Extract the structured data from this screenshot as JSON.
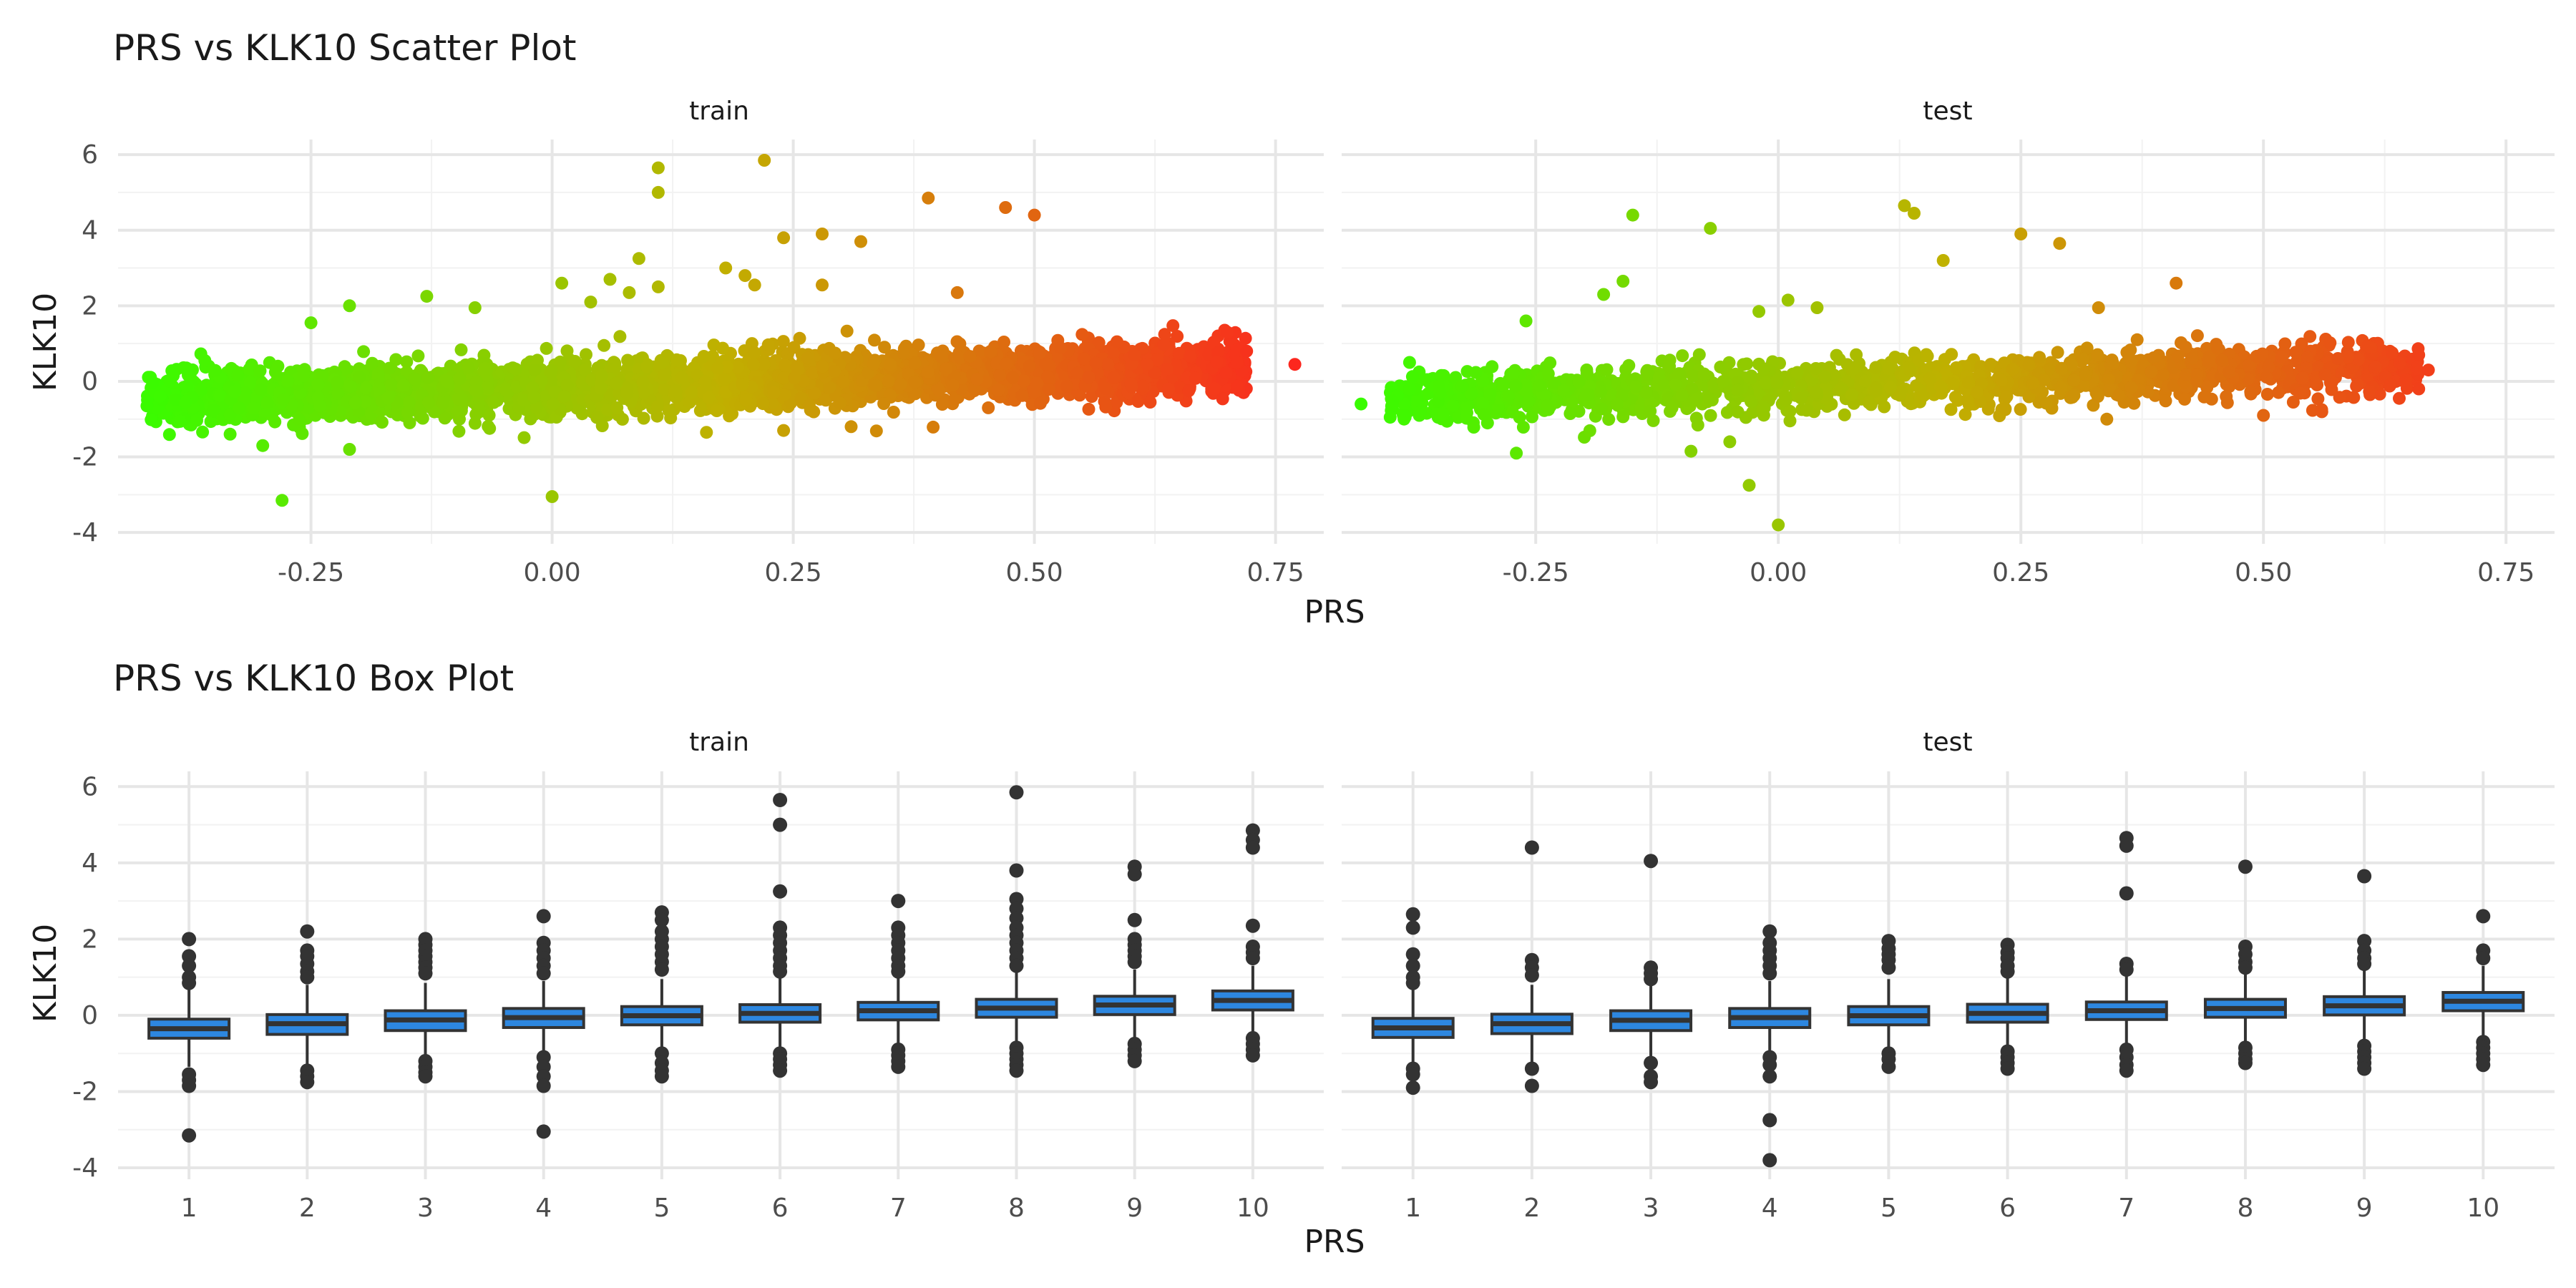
{
  "chart_data": [
    {
      "type": "scatter",
      "title": "PRS vs KLK10 Scatter Plot",
      "xlabel": "PRS",
      "ylabel": "KLK10",
      "color_gradient": {
        "low": "#33ff00",
        "mid": "#c0b000",
        "high": "#ff2020"
      },
      "xlim": [
        -0.45,
        0.8
      ],
      "ylim": [
        -4.3,
        6.4
      ],
      "x_ticks": [
        -0.25,
        0,
        0.25,
        0.5,
        0.75
      ],
      "x_tick_labels": [
        "-0.25",
        "0.00",
        "0.25",
        "0.50",
        "0.75"
      ],
      "y_ticks": [
        -4,
        -2,
        0,
        2,
        4,
        6
      ],
      "y_tick_labels": [
        "-4",
        "-2",
        "0",
        "2",
        "4",
        "6"
      ],
      "grid": true,
      "panels": [
        {
          "name": "train",
          "cloud": {
            "x_min": -0.42,
            "x_max": 0.72,
            "y_slope": 0.8,
            "y_intercept": -0.15,
            "y_spread": 0.55,
            "n_points": 3500
          },
          "points": [
            {
              "x": -0.42,
              "y": -0.65
            },
            {
              "x": -0.38,
              "y": -0.55
            },
            {
              "x": -0.36,
              "y": 0.55
            },
            {
              "x": -0.3,
              "y": -1.7
            },
            {
              "x": -0.28,
              "y": -3.15
            },
            {
              "x": -0.25,
              "y": 1.55
            },
            {
              "x": -0.21,
              "y": -1.8
            },
            {
              "x": -0.21,
              "y": 2.0
            },
            {
              "x": -0.13,
              "y": 2.25
            },
            {
              "x": -0.08,
              "y": 1.95
            },
            {
              "x": 0.0,
              "y": -3.05
            },
            {
              "x": 0.01,
              "y": 2.6
            },
            {
              "x": 0.04,
              "y": 2.1
            },
            {
              "x": 0.06,
              "y": 2.7
            },
            {
              "x": 0.08,
              "y": 2.35
            },
            {
              "x": 0.09,
              "y": 3.25
            },
            {
              "x": 0.11,
              "y": 5.65
            },
            {
              "x": 0.11,
              "y": 5.0
            },
            {
              "x": 0.11,
              "y": 2.5
            },
            {
              "x": 0.18,
              "y": 3.0
            },
            {
              "x": 0.2,
              "y": 2.8
            },
            {
              "x": 0.21,
              "y": 2.55
            },
            {
              "x": 0.22,
              "y": 5.85
            },
            {
              "x": 0.24,
              "y": 3.8
            },
            {
              "x": 0.28,
              "y": 3.9
            },
            {
              "x": 0.32,
              "y": 3.7
            },
            {
              "x": 0.28,
              "y": 2.55
            },
            {
              "x": 0.39,
              "y": 4.85
            },
            {
              "x": 0.42,
              "y": 2.35
            },
            {
              "x": 0.47,
              "y": 4.6
            },
            {
              "x": 0.5,
              "y": 4.4
            },
            {
              "x": 0.62,
              "y": -0.55
            },
            {
              "x": 0.66,
              "y": -0.25
            },
            {
              "x": 0.7,
              "y": 1.3
            },
            {
              "x": 0.71,
              "y": 0.5
            },
            {
              "x": 0.72,
              "y": 0.8
            },
            {
              "x": 0.77,
              "y": 0.45
            },
            {
              "x": 0.16,
              "y": -1.35
            },
            {
              "x": 0.24,
              "y": -1.3
            },
            {
              "x": 0.31,
              "y": -1.2
            }
          ]
        },
        {
          "name": "test",
          "cloud": {
            "x_min": -0.4,
            "x_max": 0.66,
            "y_slope": 0.8,
            "y_intercept": -0.15,
            "y_spread": 0.55,
            "n_points": 1500
          },
          "points": [
            {
              "x": -0.43,
              "y": -0.6
            },
            {
              "x": -0.4,
              "y": -0.95
            },
            {
              "x": -0.37,
              "y": -0.9
            },
            {
              "x": -0.38,
              "y": 0.5
            },
            {
              "x": -0.26,
              "y": 1.6
            },
            {
              "x": -0.27,
              "y": -1.9
            },
            {
              "x": -0.18,
              "y": 2.3
            },
            {
              "x": -0.16,
              "y": 2.65
            },
            {
              "x": -0.15,
              "y": 4.4
            },
            {
              "x": -0.07,
              "y": 4.05
            },
            {
              "x": -0.09,
              "y": -1.85
            },
            {
              "x": -0.05,
              "y": -1.6
            },
            {
              "x": -0.03,
              "y": -2.75
            },
            {
              "x": 0.0,
              "y": -3.8
            },
            {
              "x": -0.02,
              "y": 1.85
            },
            {
              "x": 0.01,
              "y": 2.15
            },
            {
              "x": 0.04,
              "y": 1.95
            },
            {
              "x": 0.13,
              "y": 4.65
            },
            {
              "x": 0.14,
              "y": 4.45
            },
            {
              "x": 0.17,
              "y": 3.2
            },
            {
              "x": 0.25,
              "y": 3.9
            },
            {
              "x": 0.29,
              "y": 3.65
            },
            {
              "x": 0.33,
              "y": 1.95
            },
            {
              "x": 0.41,
              "y": 2.6
            },
            {
              "x": 0.64,
              "y": -0.45
            },
            {
              "x": 0.66,
              "y": -0.2
            },
            {
              "x": 0.67,
              "y": 0.3
            },
            {
              "x": 0.66,
              "y": 0.7
            },
            {
              "x": 0.56,
              "y": -0.75
            },
            {
              "x": 0.5,
              "y": -0.9
            }
          ]
        }
      ]
    },
    {
      "type": "box",
      "title": "PRS vs KLK10 Box Plot",
      "xlabel": "PRS",
      "ylabel": "KLK10",
      "box_color": "#2d87e0",
      "categories": [
        "1",
        "2",
        "3",
        "4",
        "5",
        "6",
        "7",
        "8",
        "9",
        "10"
      ],
      "ylim": [
        -4.3,
        6.4
      ],
      "y_ticks": [
        -4,
        -2,
        0,
        2,
        4,
        6
      ],
      "y_tick_labels": [
        "-4",
        "-2",
        "0",
        "2",
        "4",
        "6"
      ],
      "grid": true,
      "panels": [
        {
          "name": "train",
          "boxes": [
            {
              "q1": -0.6,
              "median": -0.35,
              "q3": -0.1,
              "whisker_low": -1.35,
              "whisker_high": 0.7,
              "outliers": [
                2.0,
                1.55,
                1.3,
                1.0,
                0.85,
                -1.55,
                -1.7,
                -1.85,
                -3.15
              ]
            },
            {
              "q1": -0.5,
              "median": -0.22,
              "q3": 0.02,
              "whisker_low": -1.3,
              "whisker_high": 0.8,
              "outliers": [
                2.2,
                1.7,
                1.55,
                1.35,
                1.15,
                1.0,
                -1.45,
                -1.6,
                -1.75
              ]
            },
            {
              "q1": -0.4,
              "median": -0.12,
              "q3": 0.12,
              "whisker_low": -1.1,
              "whisker_high": 0.85,
              "outliers": [
                2.0,
                1.85,
                1.7,
                1.55,
                1.4,
                1.25,
                1.1,
                -1.2,
                -1.35,
                -1.5,
                -1.6
              ]
            },
            {
              "q1": -0.32,
              "median": -0.06,
              "q3": 0.18,
              "whisker_low": -1.0,
              "whisker_high": 0.9,
              "outliers": [
                2.6,
                1.9,
                1.7,
                1.5,
                1.3,
                1.1,
                -1.1,
                -1.35,
                -1.6,
                -1.85,
                -3.05
              ]
            },
            {
              "q1": -0.25,
              "median": -0.01,
              "q3": 0.23,
              "whisker_low": -0.9,
              "whisker_high": 0.95,
              "outliers": [
                2.7,
                2.5,
                2.2,
                2.0,
                1.8,
                1.6,
                1.4,
                1.2,
                -1.0,
                -1.25,
                -1.45,
                -1.6
              ]
            },
            {
              "q1": -0.18,
              "median": 0.05,
              "q3": 0.28,
              "whisker_low": -0.85,
              "whisker_high": 1.0,
              "outliers": [
                5.65,
                5.0,
                3.25,
                2.3,
                2.1,
                1.9,
                1.7,
                1.5,
                1.3,
                1.15,
                -1.0,
                -1.15,
                -1.3,
                -1.45
              ]
            },
            {
              "q1": -0.12,
              "median": 0.12,
              "q3": 0.34,
              "whisker_low": -0.8,
              "whisker_high": 1.05,
              "outliers": [
                3.0,
                2.3,
                2.1,
                1.9,
                1.7,
                1.5,
                1.3,
                1.15,
                -0.9,
                -1.05,
                -1.2,
                -1.35
              ]
            },
            {
              "q1": -0.05,
              "median": 0.19,
              "q3": 0.42,
              "whisker_low": -0.75,
              "whisker_high": 1.15,
              "outliers": [
                5.85,
                3.8,
                3.05,
                2.8,
                2.55,
                2.3,
                2.1,
                1.9,
                1.7,
                1.5,
                1.3,
                -0.85,
                -1.0,
                -1.15,
                -1.3,
                -1.45
              ]
            },
            {
              "q1": 0.02,
              "median": 0.27,
              "q3": 0.5,
              "whisker_low": -0.7,
              "whisker_high": 1.2,
              "outliers": [
                3.9,
                3.7,
                2.5,
                2.0,
                1.85,
                1.7,
                1.55,
                1.4,
                -0.75,
                -0.9,
                -1.05,
                -1.2
              ]
            },
            {
              "q1": 0.14,
              "median": 0.39,
              "q3": 0.64,
              "whisker_low": -0.55,
              "whisker_high": 1.3,
              "outliers": [
                4.85,
                4.6,
                4.4,
                2.35,
                1.8,
                1.65,
                1.5,
                -0.6,
                -0.75,
                -0.9,
                -1.05
              ]
            }
          ]
        },
        {
          "name": "test",
          "boxes": [
            {
              "q1": -0.58,
              "median": -0.33,
              "q3": -0.08,
              "whisker_low": -1.3,
              "whisker_high": 0.7,
              "outliers": [
                2.65,
                2.3,
                1.6,
                1.3,
                1.0,
                0.85,
                -1.4,
                -1.55,
                -1.9
              ]
            },
            {
              "q1": -0.48,
              "median": -0.22,
              "q3": 0.03,
              "whisker_low": -1.25,
              "whisker_high": 0.8,
              "outliers": [
                4.4,
                1.45,
                1.25,
                1.05,
                -1.4,
                -1.85
              ]
            },
            {
              "q1": -0.4,
              "median": -0.13,
              "q3": 0.12,
              "whisker_low": -1.1,
              "whisker_high": 0.85,
              "outliers": [
                4.05,
                1.25,
                1.1,
                0.95,
                -1.25,
                -1.6,
                -1.75
              ]
            },
            {
              "q1": -0.32,
              "median": -0.06,
              "q3": 0.18,
              "whisker_low": -1.0,
              "whisker_high": 0.9,
              "outliers": [
                2.2,
                1.9,
                1.7,
                1.5,
                1.3,
                1.1,
                -1.1,
                -1.3,
                -1.6,
                -2.75,
                -3.8
              ]
            },
            {
              "q1": -0.25,
              "median": -0.01,
              "q3": 0.23,
              "whisker_low": -0.9,
              "whisker_high": 0.95,
              "outliers": [
                1.95,
                1.75,
                1.6,
                1.45,
                1.25,
                -1.0,
                -1.15,
                -1.35
              ]
            },
            {
              "q1": -0.18,
              "median": 0.05,
              "q3": 0.29,
              "whisker_low": -0.85,
              "whisker_high": 1.0,
              "outliers": [
                1.85,
                1.65,
                1.5,
                1.3,
                1.15,
                -0.95,
                -1.1,
                -1.25,
                -1.4
              ]
            },
            {
              "q1": -0.11,
              "median": 0.12,
              "q3": 0.35,
              "whisker_low": -0.8,
              "whisker_high": 1.05,
              "outliers": [
                4.65,
                4.45,
                3.2,
                1.35,
                1.2,
                -0.9,
                -1.1,
                -1.3,
                -1.45
              ]
            },
            {
              "q1": -0.05,
              "median": 0.18,
              "q3": 0.42,
              "whisker_low": -0.75,
              "whisker_high": 1.15,
              "outliers": [
                3.9,
                1.8,
                1.6,
                1.4,
                1.25,
                -0.85,
                -1.0,
                -1.15,
                -1.25
              ]
            },
            {
              "q1": 0.01,
              "median": 0.25,
              "q3": 0.49,
              "whisker_low": -0.7,
              "whisker_high": 1.2,
              "outliers": [
                3.65,
                1.95,
                1.7,
                1.5,
                1.35,
                -0.8,
                -0.95,
                -1.1,
                -1.25,
                -1.4
              ]
            },
            {
              "q1": 0.12,
              "median": 0.37,
              "q3": 0.6,
              "whisker_low": -0.55,
              "whisker_high": 1.3,
              "outliers": [
                2.6,
                1.7,
                1.5,
                -0.7,
                -0.85,
                -1.0,
                -1.15,
                -1.3
              ]
            }
          ]
        }
      ]
    }
  ]
}
